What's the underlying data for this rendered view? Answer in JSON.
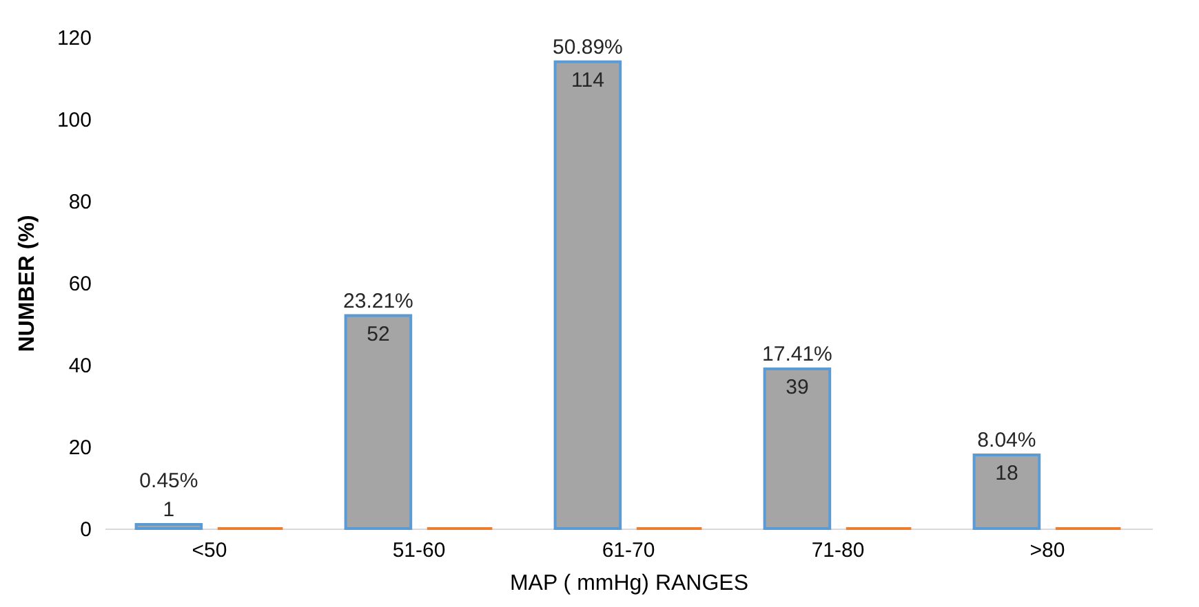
{
  "chart_data": {
    "type": "bar",
    "xlabel": "MAP ( mmHg) RANGES",
    "ylabel": "NUMBER (%)",
    "categories": [
      "<50",
      "51-60",
      "61-70",
      "71-80",
      ">80"
    ],
    "series": [
      {
        "color": "#a5a5a5",
        "values": [
          1,
          52,
          114,
          39,
          18
        ],
        "value_labels": [
          "1",
          "52",
          "114",
          "39",
          "18"
        ]
      },
      {
        "color": "#ed7d31",
        "values": [
          0,
          0,
          0,
          0,
          0
        ]
      }
    ],
    "ylim": [
      0,
      120
    ],
    "yticks": [
      0,
      20,
      40,
      60,
      80,
      100,
      120
    ],
    "grid": false,
    "legend": false,
    "annotations": [
      "0.45%",
      "23.21%",
      "50.89%",
      "17.41%",
      "8.04%"
    ]
  }
}
